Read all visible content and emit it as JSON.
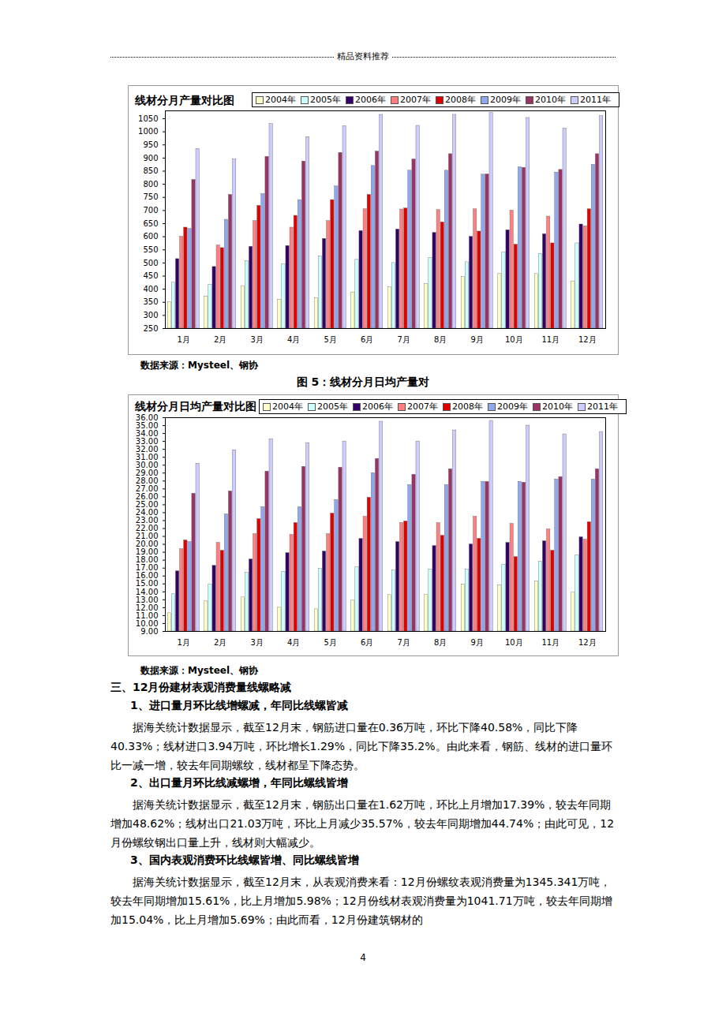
{
  "header": "精品资料推荐",
  "chart_data": [
    {
      "type": "bar",
      "title": "线材分月产量对比图",
      "categories": [
        "1月",
        "2月",
        "3月",
        "4月",
        "5月",
        "6月",
        "7月",
        "8月",
        "9月",
        "10月",
        "11月",
        "12月"
      ],
      "series": [
        {
          "name": "2004年",
          "color": "#FFFFCC",
          "values": [
            350,
            372,
            412,
            360,
            365,
            388,
            408,
            420,
            447,
            458,
            458,
            430
          ]
        },
        {
          "name": "2005年",
          "color": "#CCFFFF",
          "values": [
            425,
            417,
            508,
            495,
            525,
            512,
            500,
            520,
            503,
            540,
            535,
            575
          ]
        },
        {
          "name": "2006年",
          "color": "#330066",
          "values": [
            515,
            485,
            562,
            565,
            592,
            622,
            628,
            615,
            600,
            625,
            610,
            647
          ]
        },
        {
          "name": "2007年",
          "color": "#FF8080",
          "values": [
            600,
            567,
            660,
            635,
            660,
            705,
            704,
            702,
            705,
            700,
            677,
            640
          ]
        },
        {
          "name": "2008年",
          "color": "#E00000",
          "values": [
            635,
            557,
            718,
            680,
            740,
            760,
            708,
            655,
            620,
            570,
            575,
            705
          ]
        },
        {
          "name": "2009年",
          "color": "#8FA8F0",
          "values": [
            630,
            665,
            763,
            740,
            792,
            870,
            852,
            852,
            837,
            865,
            845,
            875
          ]
        },
        {
          "name": "2010年",
          "color": "#993366",
          "values": [
            817,
            760,
            905,
            887,
            920,
            925,
            895,
            915,
            838,
            863,
            855,
            915
          ]
        },
        {
          "name": "2011年",
          "color": "#CCCCFF",
          "values": [
            935,
            895,
            1030,
            980,
            1022,
            1065,
            1023,
            1065,
            1072,
            1053,
            1013,
            1060
          ]
        }
      ],
      "ylim": [
        250,
        1080
      ],
      "yticks": [
        250,
        300,
        350,
        400,
        450,
        500,
        550,
        600,
        650,
        700,
        750,
        800,
        850,
        900,
        950,
        1000,
        1050
      ],
      "grid": false,
      "legend": "top",
      "source": "数据来源：Mysteel、钢协"
    },
    {
      "type": "bar",
      "title": "线材分月日均产量对比图",
      "categories": [
        "1月",
        "2月",
        "3月",
        "4月",
        "5月",
        "6月",
        "7月",
        "8月",
        "9月",
        "10月",
        "11月",
        "12月"
      ],
      "series": [
        {
          "name": "2004年",
          "color": "#FFFFCC",
          "values": [
            11.3,
            12.8,
            13.3,
            12.0,
            11.8,
            12.9,
            13.6,
            13.6,
            14.9,
            14.8,
            15.3,
            13.9
          ]
        },
        {
          "name": "2005年",
          "color": "#CCFFFF",
          "values": [
            13.7,
            14.9,
            16.4,
            16.5,
            16.9,
            17.1,
            16.7,
            16.8,
            16.8,
            17.4,
            17.8,
            18.6
          ]
        },
        {
          "name": "2006年",
          "color": "#330066",
          "values": [
            16.6,
            17.3,
            18.1,
            18.9,
            19.1,
            20.7,
            20.3,
            19.8,
            20.0,
            20.2,
            20.4,
            20.9
          ]
        },
        {
          "name": "2007年",
          "color": "#FF8080",
          "values": [
            19.4,
            20.2,
            21.3,
            21.2,
            21.3,
            23.5,
            22.7,
            22.7,
            23.5,
            22.6,
            21.9,
            20.6
          ]
        },
        {
          "name": "2008年",
          "color": "#E00000",
          "values": [
            20.5,
            19.2,
            23.2,
            22.7,
            23.9,
            25.9,
            22.9,
            21.1,
            20.7,
            18.4,
            19.2,
            22.8
          ]
        },
        {
          "name": "2009年",
          "color": "#8FA8F0",
          "values": [
            20.3,
            23.8,
            24.7,
            24.7,
            25.6,
            29.0,
            27.5,
            27.5,
            27.9,
            27.9,
            28.2,
            28.2
          ]
        },
        {
          "name": "2010年",
          "color": "#993366",
          "values": [
            26.4,
            26.7,
            29.2,
            29.8,
            29.7,
            30.8,
            28.8,
            29.5,
            27.9,
            27.8,
            28.5,
            29.5
          ]
        },
        {
          "name": "2011年",
          "color": "#CCCCFF",
          "values": [
            30.2,
            31.9,
            33.3,
            32.8,
            33.0,
            35.5,
            33.0,
            34.4,
            35.6,
            35.0,
            33.9,
            34.2
          ]
        }
      ],
      "ylim": [
        9,
        36
      ],
      "yticks": [
        {
          "value": 9,
          "label": "9.00"
        },
        {
          "value": 10,
          "label": "10.00"
        },
        {
          "value": 11,
          "label": "11.00"
        },
        {
          "value": 12,
          "label": "12.00"
        },
        {
          "value": 13,
          "label": "13.00"
        },
        {
          "value": 14,
          "label": "14.00"
        },
        {
          "value": 15,
          "label": "15.00"
        },
        {
          "value": 16,
          "label": "16.00"
        },
        {
          "value": 17,
          "label": "17.00"
        },
        {
          "value": 18,
          "label": "18.00"
        },
        {
          "value": 19,
          "label": "19.00"
        },
        {
          "value": 20,
          "label": "20.00"
        },
        {
          "value": 21,
          "label": "21.00"
        },
        {
          "value": 22,
          "label": "22.00"
        },
        {
          "value": 23,
          "label": "23.00"
        },
        {
          "value": 24,
          "label": "24.00"
        },
        {
          "value": 25,
          "label": "25.00"
        },
        {
          "value": 26,
          "label": "26.00"
        },
        {
          "value": 27,
          "label": "27.00"
        },
        {
          "value": 28,
          "label": "28.00"
        },
        {
          "value": 29,
          "label": "29.00"
        },
        {
          "value": 30,
          "label": "30.00"
        },
        {
          "value": 31,
          "label": "31.00"
        },
        {
          "value": 32,
          "label": "32.00"
        },
        {
          "value": 33,
          "label": "33.00"
        },
        {
          "value": 34,
          "label": "34.00"
        },
        {
          "value": 35,
          "label": "35.00"
        },
        {
          "value": 36,
          "label": "36.00"
        }
      ],
      "grid": false,
      "legend": "top",
      "source": "数据来源：Mysteel、钢协"
    }
  ],
  "caption": "图 5：线材分月日均产量对",
  "section": {
    "title": "三、12月份建材表观消费量线螺略减",
    "items": [
      {
        "heading": "1、进口量月环比线增螺减，年同比线螺皆减",
        "text": "据海关统计数据显示，截至12月末，钢筋进口量在0.36万吨，环比下降40.58%，同比下降40.33%；线材进口3.94万吨，环比增长1.29%，同比下降35.2%。由此来看，钢筋、线材的进口量环比一减一增，较去年同期螺纹，线材都呈下降态势。"
      },
      {
        "heading": "2、出口量月环比线减螺增，年同比螺线皆增",
        "text": "据海关统计数据显示，截至12月末，钢筋出口量在1.62万吨，环比上月增加17.39%，较去年同期增加48.62%；线材出口21.03万吨，环比上月减少35.57%，较去年同期增加44.74%；由此可见，12月份螺纹钢出口量上升，线材则大幅减少。"
      },
      {
        "heading": "3、国内表观消费环比线螺皆增、同比螺线皆增",
        "text": "据海关统计数据显示，截至12月末，从表观消费来看：12月份螺纹表观消费量为1345.341万吨，较去年同期增加15.61%，比上月增加5.98%；12月份线材表观消费量为1041.71万吨，较去年同期增加15.04%，比上月增加5.69%；由此而看，12月份建筑钢材的"
      }
    ]
  },
  "page_number": "4"
}
